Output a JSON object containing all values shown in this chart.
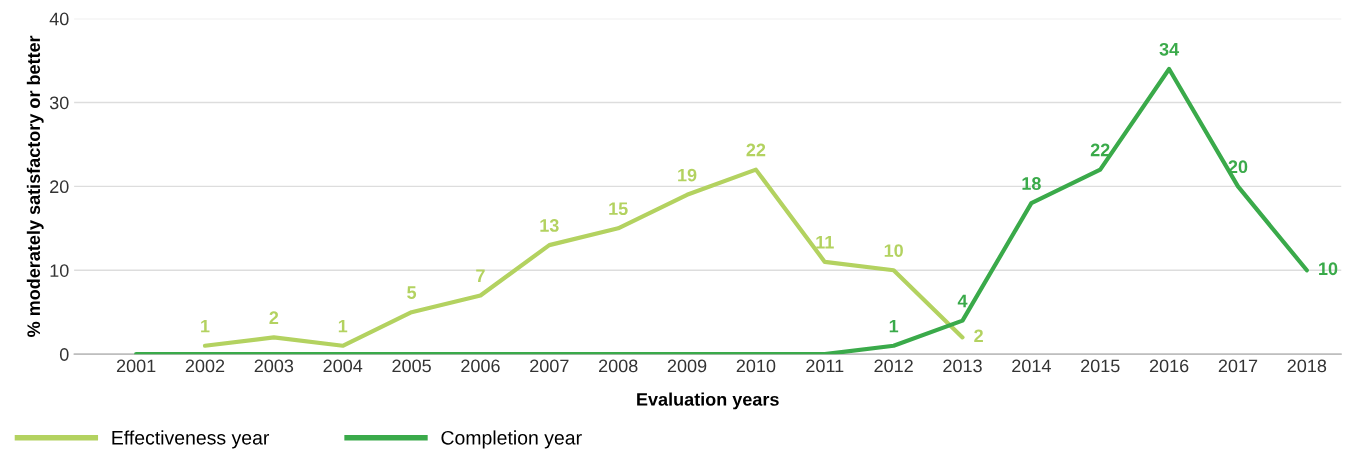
{
  "chart_data": {
    "type": "line",
    "xlabel": "Evaluation years",
    "ylabel": "% moderately satisfactory or better",
    "categories": [
      "2001",
      "2002",
      "2003",
      "2004",
      "2005",
      "2006",
      "2007",
      "2008",
      "2009",
      "2010",
      "2011",
      "2012",
      "2013",
      "2014",
      "2015",
      "2016",
      "2017",
      "2018"
    ],
    "series": [
      {
        "name": "Effectiveness year",
        "color": "#b3d260",
        "values": [
          null,
          1,
          2,
          1,
          5,
          7,
          13,
          15,
          19,
          22,
          11,
          10,
          2,
          null,
          null,
          null,
          null,
          null
        ],
        "value_labels": [
          null,
          "1",
          "2",
          "1",
          "5",
          "7",
          "13",
          "15",
          "19",
          "22",
          "11",
          "10",
          "2",
          null,
          null,
          null,
          null,
          null
        ]
      },
      {
        "name": "Completion year",
        "color": "#3aaa4a",
        "values": [
          0,
          0,
          0,
          0,
          0,
          0,
          0,
          0,
          0,
          0,
          0,
          1,
          4,
          18,
          22,
          34,
          20,
          10
        ],
        "value_labels": [
          null,
          null,
          null,
          null,
          null,
          null,
          null,
          null,
          null,
          null,
          null,
          "1",
          "4",
          "18",
          "22",
          "34",
          "20",
          "10"
        ]
      }
    ],
    "ylim": [
      0,
      40
    ],
    "yticks": [
      0,
      10,
      20,
      30,
      40
    ],
    "grid": "y",
    "legend": "bottom left",
    "marker": "none",
    "line_style": "solid"
  }
}
